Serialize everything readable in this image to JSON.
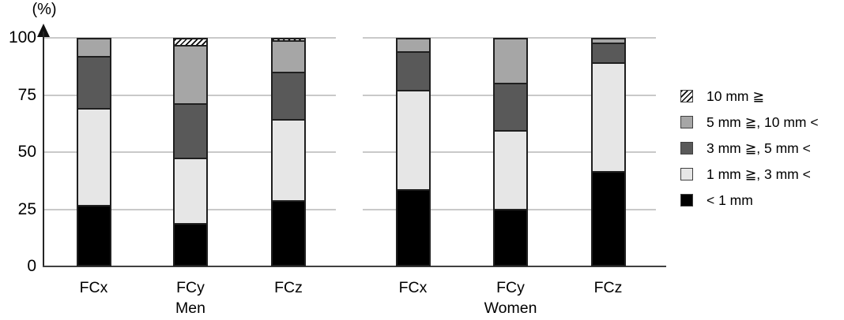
{
  "figure": {
    "y_unit_label": "(%)"
  },
  "chart_data": {
    "type": "bar",
    "stacked": true,
    "orientation": "vertical",
    "title": "",
    "xlabel": "",
    "ylabel": "(%)",
    "unit": "%",
    "ylim": [
      0,
      100
    ],
    "yticks": [
      0,
      25,
      50,
      75,
      100
    ],
    "grid": true,
    "legend_position": "right",
    "groups": [
      {
        "label": "Men",
        "categories": [
          "FCx",
          "FCy",
          "FCz"
        ]
      },
      {
        "label": "Women",
        "categories": [
          "FCx",
          "FCy",
          "FCz"
        ]
      }
    ],
    "columns": [
      "Men FCx",
      "Men FCy",
      "Men FCz",
      "Women FCx",
      "Women FCy",
      "Women FCz"
    ],
    "series": [
      {
        "name": "< 1 mm",
        "swatch": "black",
        "color": "#000000",
        "values": [
          26,
          18,
          28,
          33,
          24,
          41
        ]
      },
      {
        "name": "1 mm ≧, 3 mm <",
        "swatch": "light-gray",
        "color": "#e6e6e6",
        "values": [
          43,
          29,
          36,
          44,
          35,
          48
        ]
      },
      {
        "name": "3 mm ≧, 5 mm <",
        "swatch": "dark-gray",
        "color": "#595959",
        "values": [
          23,
          24,
          21,
          17,
          21,
          9
        ]
      },
      {
        "name": "5 mm ≧, 10 mm <",
        "swatch": "medium-gray",
        "color": "#a6a6a6",
        "values": [
          8,
          26,
          14,
          6,
          20,
          2
        ]
      },
      {
        "name": "10 mm ≧",
        "swatch": "hatch",
        "color": "hatch",
        "values": [
          0,
          3,
          1,
          0,
          0,
          0
        ]
      }
    ]
  }
}
